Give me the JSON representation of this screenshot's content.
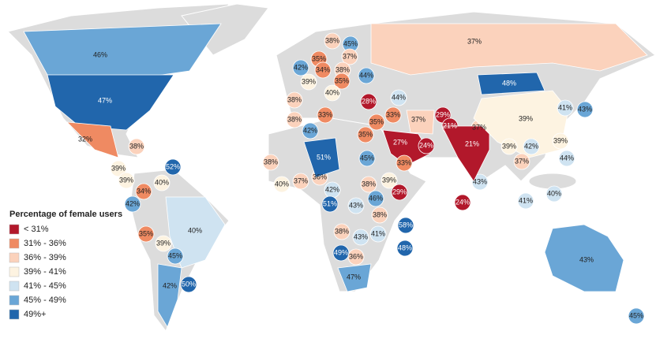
{
  "legend": {
    "title": "Percentage of female users",
    "items": [
      {
        "label": "< 31%",
        "color": "#b2182b"
      },
      {
        "label": "31% - 36%",
        "color": "#ef8a62"
      },
      {
        "label": "36% - 39%",
        "color": "#fbd2bc"
      },
      {
        "label": "39% - 41%",
        "color": "#fdf3e1"
      },
      {
        "label": "41% - 45%",
        "color": "#cfe3f1"
      },
      {
        "label": "45% - 49%",
        "color": "#6aa6d6"
      },
      {
        "label": "49%+",
        "color": "#2166ac"
      }
    ]
  },
  "regions": [
    {
      "value": 46,
      "label": "46%",
      "color": "#6aa6d6"
    },
    {
      "value": 47,
      "label": "47%",
      "color": "#2166ac"
    },
    {
      "value": 32,
      "label": "32%",
      "color": "#ef8a62"
    },
    {
      "value": 38,
      "label": "38%",
      "color": "#fbd2bc"
    },
    {
      "value": 39,
      "label": "39%",
      "color": "#fdf3e1"
    },
    {
      "value": 39,
      "label": "39%",
      "color": "#fdf3e1"
    },
    {
      "value": 40,
      "label": "40%",
      "color": "#fdf3e1"
    },
    {
      "value": 52,
      "label": "52%",
      "color": "#2166ac"
    },
    {
      "value": 34,
      "label": "34%",
      "color": "#ef8a62"
    },
    {
      "value": 42,
      "label": "42%",
      "color": "#6aa6d6"
    },
    {
      "value": 35,
      "label": "35%",
      "color": "#ef8a62"
    },
    {
      "value": 39,
      "label": "39%",
      "color": "#fdf3e1"
    },
    {
      "value": 40,
      "label": "40%",
      "color": "#cfe3f1"
    },
    {
      "value": 45,
      "label": "45%",
      "color": "#6aa6d6"
    },
    {
      "value": 42,
      "label": "42%",
      "color": "#6aa6d6"
    },
    {
      "value": 50,
      "label": "50%",
      "color": "#2166ac"
    },
    {
      "value": 38,
      "label": "38%",
      "color": "#fbd2bc"
    },
    {
      "value": 40,
      "label": "40%",
      "color": "#fdf3e1"
    },
    {
      "value": 37,
      "label": "37%",
      "color": "#fbd2bc"
    },
    {
      "value": 36,
      "label": "36%",
      "color": "#fbd2bc"
    },
    {
      "value": 42,
      "label": "42%",
      "color": "#cfe3f1"
    },
    {
      "value": 51,
      "label": "51%",
      "color": "#2166ac"
    },
    {
      "value": 51,
      "label": "51%",
      "color": "#2166ac"
    },
    {
      "value": 45,
      "label": "45%",
      "color": "#6aa6d6"
    },
    {
      "value": 38,
      "label": "38%",
      "color": "#fbd2bc"
    },
    {
      "value": 39,
      "label": "39%",
      "color": "#fdf3e1"
    },
    {
      "value": 29,
      "label": "29%",
      "color": "#b2182b"
    },
    {
      "value": 43,
      "label": "43%",
      "color": "#cfe3f1"
    },
    {
      "value": 46,
      "label": "46%",
      "color": "#6aa6d6"
    },
    {
      "value": 38,
      "label": "38%",
      "color": "#fbd2bc"
    },
    {
      "value": 38,
      "label": "38%",
      "color": "#fbd2bc"
    },
    {
      "value": 43,
      "label": "43%",
      "color": "#cfe3f1"
    },
    {
      "value": 41,
      "label": "41%",
      "color": "#cfe3f1"
    },
    {
      "value": 58,
      "label": "58%",
      "color": "#2166ac"
    },
    {
      "value": 49,
      "label": "49%",
      "color": "#2166ac"
    },
    {
      "value": 36,
      "label": "36%",
      "color": "#fbd2bc"
    },
    {
      "value": 47,
      "label": "47%",
      "color": "#6aa6d6"
    },
    {
      "value": 48,
      "label": "48%",
      "color": "#2166ac"
    },
    {
      "value": 24,
      "label": "24%",
      "color": "#b2182b"
    },
    {
      "value": 43,
      "label": "43%",
      "color": "#cfe3f1"
    },
    {
      "value": 38,
      "label": "38%",
      "color": "#fbd2bc"
    },
    {
      "value": 42,
      "label": "42%",
      "color": "#6aa6d6"
    },
    {
      "value": 38,
      "label": "38%",
      "color": "#fbd2bc"
    },
    {
      "value": 42,
      "label": "42%",
      "color": "#6aa6d6"
    },
    {
      "value": 35,
      "label": "35%",
      "color": "#ef8a62"
    },
    {
      "value": 38,
      "label": "38%",
      "color": "#fbd2bc"
    },
    {
      "value": 45,
      "label": "45%",
      "color": "#6aa6d6"
    },
    {
      "value": 37,
      "label": "37%",
      "color": "#fbd2bc"
    },
    {
      "value": 39,
      "label": "39%",
      "color": "#fdf3e1"
    },
    {
      "value": 34,
      "label": "34%",
      "color": "#ef8a62"
    },
    {
      "value": 38,
      "label": "38%",
      "color": "#fbd2bc"
    },
    {
      "value": 35,
      "label": "35%",
      "color": "#ef8a62"
    },
    {
      "value": 40,
      "label": "40%",
      "color": "#fdf3e1"
    },
    {
      "value": 44,
      "label": "44%",
      "color": "#6aa6d6"
    },
    {
      "value": 44,
      "label": "44%",
      "color": "#cfe3f1"
    },
    {
      "value": 28,
      "label": "28%",
      "color": "#b2182b"
    },
    {
      "value": 33,
      "label": "33%",
      "color": "#ef8a62"
    },
    {
      "value": 35,
      "label": "35%",
      "color": "#ef8a62"
    },
    {
      "value": 33,
      "label": "33%",
      "color": "#ef8a62"
    },
    {
      "value": 35,
      "label": "35%",
      "color": "#ef8a62"
    },
    {
      "value": 37,
      "label": "37%",
      "color": "#fbd2bc"
    },
    {
      "value": 27,
      "label": "27%",
      "color": "#b2182b"
    },
    {
      "value": 24,
      "label": "24%",
      "color": "#b2182b"
    },
    {
      "value": 33,
      "label": "33%",
      "color": "#ef8a62"
    },
    {
      "value": 29,
      "label": "29%",
      "color": "#b2182b"
    },
    {
      "value": 21,
      "label": "21%",
      "color": "#b2182b"
    },
    {
      "value": 37,
      "label": "37%",
      "color": "#fbd2bc"
    },
    {
      "value": 21,
      "label": "21%",
      "color": "#b2182b"
    },
    {
      "value": 39,
      "label": "39%",
      "color": "#fdf3e1"
    },
    {
      "value": 39,
      "label": "39%",
      "color": "#fdf3e1"
    },
    {
      "value": 42,
      "label": "42%",
      "color": "#cfe3f1"
    },
    {
      "value": 39,
      "label": "39%",
      "color": "#fdf3e1"
    },
    {
      "value": 37,
      "label": "37%",
      "color": "#fbd2bc"
    },
    {
      "value": 44,
      "label": "44%",
      "color": "#cfe3f1"
    },
    {
      "value": 40,
      "label": "40%",
      "color": "#cfe3f1"
    },
    {
      "value": 41,
      "label": "41%",
      "color": "#cfe3f1"
    },
    {
      "value": 48,
      "label": "48%",
      "color": "#2166ac"
    },
    {
      "value": 37,
      "label": "37%",
      "color": "#fbd2bc"
    },
    {
      "value": 41,
      "label": "41%",
      "color": "#cfe3f1"
    },
    {
      "value": 43,
      "label": "43%",
      "color": "#6aa6d6"
    },
    {
      "value": 43,
      "label": "43%",
      "color": "#6aa6d6"
    },
    {
      "value": 45,
      "label": "45%",
      "color": "#6aa6d6"
    }
  ]
}
